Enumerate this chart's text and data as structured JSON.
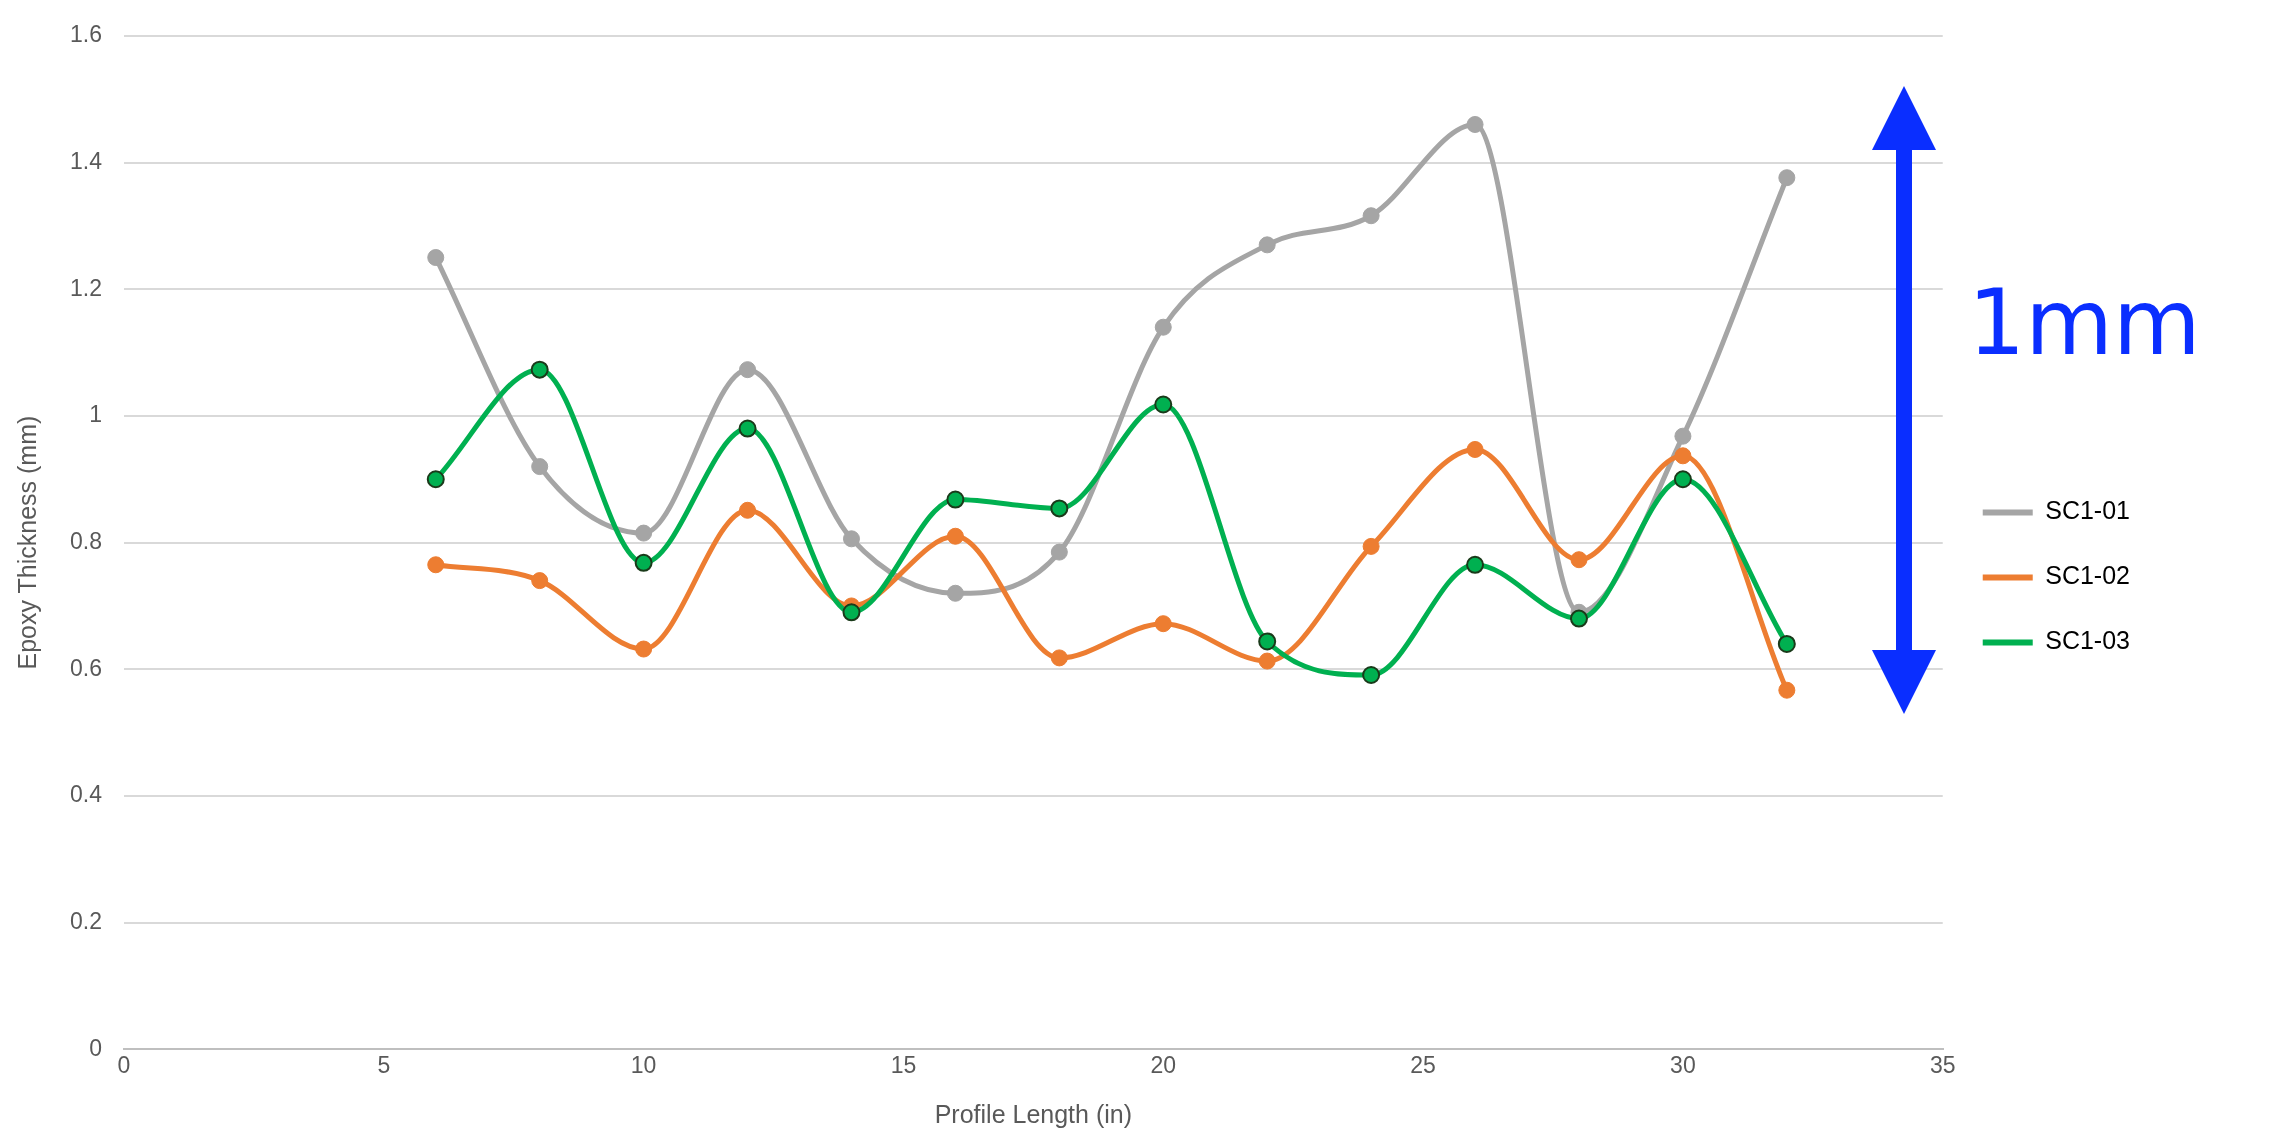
{
  "chart_data": {
    "type": "line",
    "xlabel": "Profile Length (in)",
    "ylabel": "Epoxy Thickness (mm)",
    "x": [
      6,
      8,
      10,
      12,
      14,
      16,
      18,
      20,
      22,
      24,
      26,
      28,
      30,
      32
    ],
    "series": [
      {
        "name": "SC1-01",
        "color": "#a5a5a5",
        "values": [
          1.25,
          0.92,
          0.815,
          1.073,
          0.806,
          0.72,
          0.785,
          1.14,
          1.27,
          1.316,
          1.46,
          0.69,
          0.968,
          1.376
        ]
      },
      {
        "name": "SC1-02",
        "color": "#ed7d31",
        "values": [
          0.765,
          0.74,
          0.632,
          0.851,
          0.7,
          0.81,
          0.618,
          0.672,
          0.613,
          0.794,
          0.947,
          0.773,
          0.937,
          0.567
        ]
      },
      {
        "name": "SC1-03",
        "color": "#00b050",
        "values": [
          0.9,
          1.073,
          0.768,
          0.98,
          0.69,
          0.868,
          0.854,
          1.018,
          0.644,
          0.591,
          0.765,
          0.68,
          0.9,
          0.64
        ]
      }
    ],
    "xlim": [
      0,
      35
    ],
    "xticks": [
      0,
      5,
      10,
      15,
      20,
      25,
      30,
      35
    ],
    "ylim": [
      0,
      1.6
    ],
    "yticks": [
      0,
      0.2,
      0.4,
      0.6,
      0.8,
      1,
      1.2,
      1.4,
      1.6
    ],
    "grid": "y",
    "legend": "right",
    "marker": "circle",
    "line_style": "solid",
    "annotations": [
      "1mm"
    ]
  }
}
